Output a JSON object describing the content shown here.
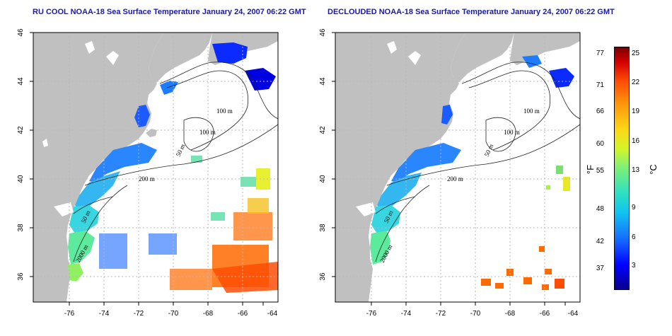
{
  "left_panel": {
    "title": "RU COOL NOAA-18 Sea Surface Temperature January 24, 2007 06:22 GMT"
  },
  "right_panel": {
    "title": "DECLOUDED NOAA-18 Sea Surface Temperature January 24, 2007 06:22 GMT"
  },
  "axes": {
    "lon_ticks": [
      "-76",
      "-74",
      "-72",
      "-70",
      "-68",
      "-66",
      "-64"
    ],
    "lat_ticks": [
      "46",
      "44",
      "42",
      "40",
      "38",
      "36"
    ]
  },
  "isobaths": [
    "100 m",
    "100 m",
    "50 m",
    "200 m",
    "50 m",
    "2000 m"
  ],
  "colorbar": {
    "fahrenheit_ticks": [
      "77",
      "71",
      "66",
      "60",
      "55",
      "48",
      "42",
      "37"
    ],
    "celsius_ticks": [
      "25",
      "22",
      "19",
      "16",
      "13",
      "9",
      "6",
      "3"
    ],
    "fahrenheit_label": "°F",
    "celsius_label": "°C"
  },
  "colors": {
    "land": "#c0c0c0",
    "ocean": "#ffffff",
    "title": "#1a1aa8",
    "cold": "#0000ff",
    "mid": "#28e0c8",
    "warm": "#ff6a00"
  }
}
